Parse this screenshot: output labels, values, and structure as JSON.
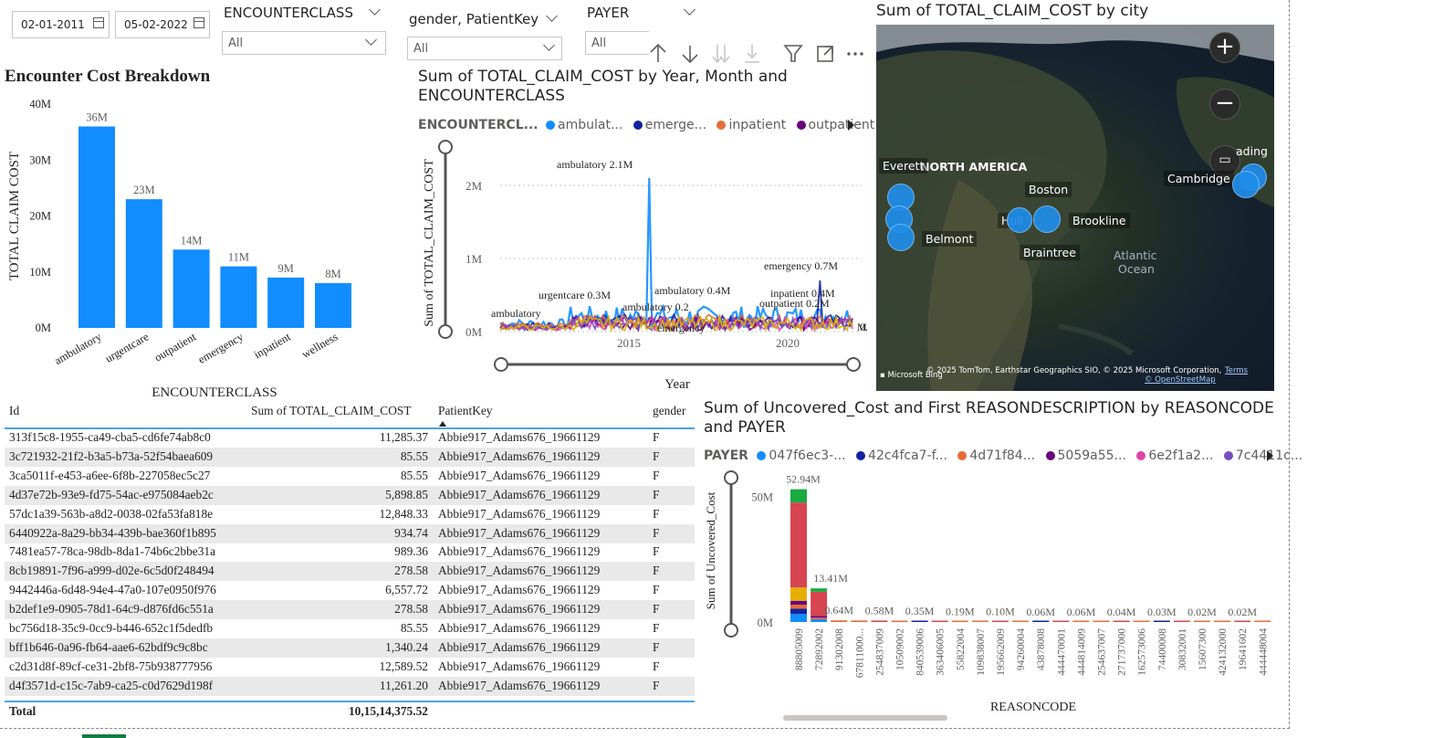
{
  "filters": {
    "date_start": "02-01-2011",
    "date_end": "05-02-2022",
    "encounterclass": {
      "title": "ENCOUNTERCLASS",
      "value": "All"
    },
    "gender_patient": {
      "title": "gender, PatientKey",
      "value": "All"
    },
    "payer": {
      "title": "PAYER",
      "value": "All"
    }
  },
  "visual_header_icons": [
    "drill-up-icon",
    "drill-down-icon",
    "expand-all-icon",
    "expand-hierarchy-icon",
    "filter-icon",
    "focus-mode-icon",
    "more-options-icon"
  ],
  "bar_chart": {
    "title": "Encounter Cost Breakdown",
    "ylabel": "TOTAL CLAIM COST",
    "xlabel": "ENCOUNTERCLASS",
    "yticks": [
      "0M",
      "10M",
      "20M",
      "30M",
      "40M"
    ],
    "color": "#118dff"
  },
  "line_chart": {
    "title_line1": "Sum of TOTAL_CLAIM_COST by Year, Month and",
    "title_line2": "ENCOUNTERCLASS",
    "legend_title": "ENCOUNTERCL...",
    "legend": [
      {
        "name": "ambulat...",
        "color": "#118dff"
      },
      {
        "name": "emerge...",
        "color": "#12239e"
      },
      {
        "name": "inpatient",
        "color": "#e66c37"
      },
      {
        "name": "outpatient",
        "color": "#6b007b"
      }
    ],
    "ylabel": "Sum of TOTAL_CLAIM_COST",
    "xlabel": "Year",
    "yticks": [
      "0M",
      "1M",
      "2M"
    ],
    "xticks": [
      "2015",
      "2020"
    ],
    "annotations": [
      "ambulatory 2.1M",
      "urgentcare 0.3M",
      "ambulatory 0.4M",
      "ambulatory 0.2",
      "emergency 0.7M",
      "inpatient 0.4M",
      "outpatient 0.2M",
      "ambulatory",
      "emergency",
      "0.",
      "M"
    ]
  },
  "map": {
    "title": "Sum of TOTAL_CLAIM_COST by city",
    "labels": [
      "NORTH AMERICA",
      "Everett",
      "Boston",
      "Hull",
      "Brookline",
      "Belmont",
      "Braintree",
      "Cambridge",
      "ading",
      "Atlantic",
      "Ocean"
    ],
    "attribution": "© 2025 TomTom, Earthstar Geographics SIO, © 2025 Microsoft Corporation,",
    "terms": "Terms",
    "osm": "© OpenStreetMap",
    "brand": "Microsoft Bing"
  },
  "table": {
    "columns": [
      "Id",
      "Sum of TOTAL_CLAIM_COST",
      "PatientKey",
      "gender"
    ],
    "rows": [
      [
        "313f15c8-1955-ca49-cba5-cd6fe74ab8c0",
        "11,285.37",
        "Abbie917_Adams676_19661129",
        "F"
      ],
      [
        "3c721932-21f2-b3a5-b73a-52f54baea609",
        "85.55",
        "Abbie917_Adams676_19661129",
        "F"
      ],
      [
        "3ca5011f-e453-a6ee-6f8b-227058ec5c27",
        "85.55",
        "Abbie917_Adams676_19661129",
        "F"
      ],
      [
        "4d37e72b-93e9-fd75-54ac-e975084aeb2c",
        "5,898.85",
        "Abbie917_Adams676_19661129",
        "F"
      ],
      [
        "57dc1a39-563b-a8d2-0038-02fa53fa818e",
        "12,848.33",
        "Abbie917_Adams676_19661129",
        "F"
      ],
      [
        "6440922a-8a29-bb34-439b-bae360f1b895",
        "934.74",
        "Abbie917_Adams676_19661129",
        "F"
      ],
      [
        "7481ea57-78ca-98db-8da1-74b6c2bbe31a",
        "989.36",
        "Abbie917_Adams676_19661129",
        "F"
      ],
      [
        "8cb19891-7f96-a999-d02e-6c5d0f248494",
        "278.58",
        "Abbie917_Adams676_19661129",
        "F"
      ],
      [
        "9442446a-6d48-94e4-47a0-107e0950f976",
        "6,557.72",
        "Abbie917_Adams676_19661129",
        "F"
      ],
      [
        "b2def1e9-0905-78d1-64c9-d876fd6c551a",
        "278.58",
        "Abbie917_Adams676_19661129",
        "F"
      ],
      [
        "bc756d18-35c9-0cc9-b446-652c1f5dedfb",
        "85.55",
        "Abbie917_Adams676_19661129",
        "F"
      ],
      [
        "bff1b646-0a96-fb64-aae6-62bdf9c9c8bc",
        "1,340.24",
        "Abbie917_Adams676_19661129",
        "F"
      ],
      [
        "c2d31d8f-89cf-ce31-2bf8-75b938777956",
        "12,589.52",
        "Abbie917_Adams676_19661129",
        "F"
      ],
      [
        "d4f3571d-c15c-7ab9-ca25-c0d7629d198f",
        "11,261.20",
        "Abbie917_Adams676_19661129",
        "F"
      ]
    ],
    "total_label": "Total",
    "total_value": "10,15,14,375.52"
  },
  "stacked_chart": {
    "title_line1": "Sum of Uncovered_Cost and First REASONDESCRIPTION by REASONCODE",
    "title_line2": "and PAYER",
    "legend_title": "PAYER",
    "legend": [
      {
        "name": "047f6ec3-...",
        "color": "#118dff"
      },
      {
        "name": "42c4fca7-f...",
        "color": "#12239e"
      },
      {
        "name": "4d71f84...",
        "color": "#e66c37"
      },
      {
        "name": "5059a55...",
        "color": "#6b007b"
      },
      {
        "name": "6e2f1a2...",
        "color": "#e044a7"
      },
      {
        "name": "7c4411c...",
        "color": "#744ec2"
      }
    ],
    "ylabel": "Sum of Uncovered_Cost",
    "xlabel": "REASONCODE",
    "yticks": [
      "0M",
      "50M"
    ]
  },
  "chart_data": [
    {
      "type": "bar",
      "title": "Encounter Cost Breakdown",
      "xlabel": "ENCOUNTERCLASS",
      "ylabel": "TOTAL CLAIM COST",
      "categories": [
        "ambulatory",
        "urgentcare",
        "outpatient",
        "emergency",
        "inpatient",
        "wellness"
      ],
      "values": [
        36,
        23,
        14,
        11,
        9,
        8
      ],
      "value_labels": [
        "36M",
        "23M",
        "14M",
        "11M",
        "9M",
        "8M"
      ],
      "ylim": [
        0,
        40
      ],
      "unit": "M"
    },
    {
      "type": "bar",
      "title": "Sum of Uncovered_Cost and First REASONDESCRIPTION by REASONCODE and PAYER",
      "xlabel": "REASONCODE",
      "ylabel": "Sum of Uncovered_Cost",
      "categories": [
        "88805009",
        "72892002",
        "91302008",
        "67811000...",
        "254837009",
        "10509002",
        "840539006",
        "363406005",
        "55822004",
        "109838007",
        "195662009",
        "94260004",
        "43878008",
        "444470001",
        "444814009",
        "254637007",
        "271737000",
        "162573006",
        "74400008",
        "30832001",
        "15607300",
        "424132000",
        "19641602",
        "444448004"
      ],
      "values": [
        52.94,
        13.41,
        0.64,
        0.6,
        0.58,
        0.45,
        0.35,
        0.25,
        0.19,
        0.14,
        0.1,
        0.08,
        0.06,
        0.06,
        0.06,
        0.05,
        0.04,
        0.04,
        0.03,
        0.03,
        0.02,
        0.02,
        0.02,
        0.02
      ],
      "value_labels": [
        "52.94M",
        "13.41M",
        "0.64M",
        "",
        "0.58M",
        "",
        "0.35M",
        "",
        "0.19M",
        "",
        "0.10M",
        "",
        "0.06M",
        "",
        "0.06M",
        "",
        "0.04M",
        "",
        "0.03M",
        "",
        "0.02M",
        "",
        "0.02M",
        ""
      ],
      "ylim": [
        0,
        55
      ],
      "unit": "M"
    }
  ]
}
